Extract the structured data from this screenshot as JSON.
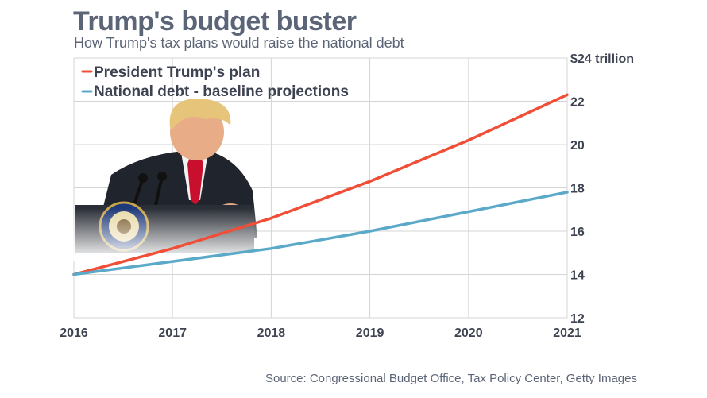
{
  "title": "Trump's budget buster",
  "subtitle": "How Trump's tax plans would raise the national debt",
  "source": "Source: Congressional Budget Office, Tax Policy Center, Getty Images",
  "colors": {
    "trump_plan": "#f04e37",
    "baseline": "#5aa9c9",
    "grid": "#d5d5d5",
    "text": "#3d4350",
    "title": "#5c6577"
  },
  "chart_data": {
    "type": "line",
    "title": "Trump's budget buster",
    "xlabel": "",
    "ylabel": "",
    "x": [
      2016,
      2017,
      2018,
      2019,
      2020,
      2021
    ],
    "x_tick_labels": [
      "2016",
      "2017",
      "2018",
      "2019",
      "2020",
      "2021"
    ],
    "y_tick_labels": [
      "$24 trillion",
      "22",
      "20",
      "18",
      "16",
      "14",
      "12"
    ],
    "y_ticks": [
      24,
      22,
      20,
      18,
      16,
      14,
      12
    ],
    "ylim": [
      12,
      24
    ],
    "grid": true,
    "legend_position": "top-left",
    "series": [
      {
        "name": "President Trump's plan",
        "color": "#f04e37",
        "values": [
          14.0,
          15.2,
          16.6,
          18.3,
          20.2,
          22.3
        ]
      },
      {
        "name": "National debt - baseline projections",
        "color": "#5aa9c9",
        "values": [
          14.0,
          14.6,
          15.2,
          16.0,
          16.9,
          17.8
        ]
      }
    ]
  },
  "photo": {
    "label": "Donald Trump at presidential podium"
  }
}
